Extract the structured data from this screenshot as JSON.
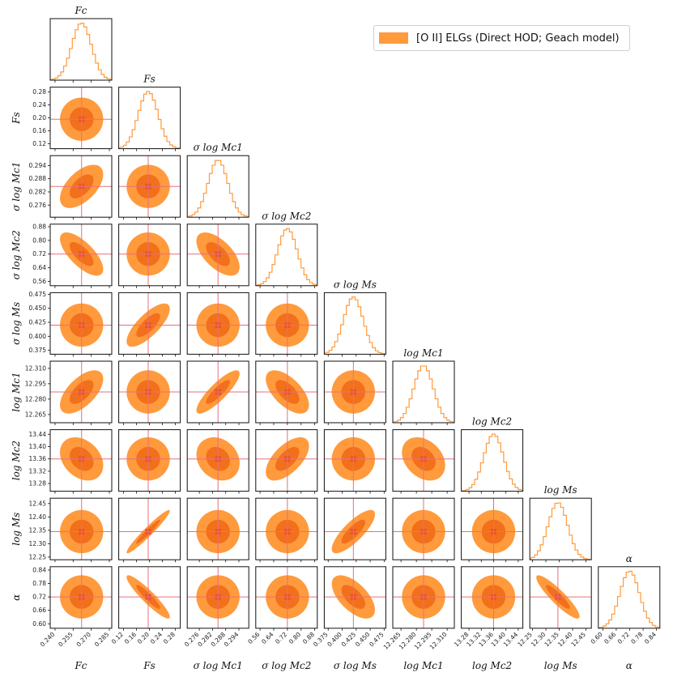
{
  "legend": {
    "label": "[O II] ELGs (Direct HOD; Geach model)"
  },
  "colors": {
    "hist": "#ff9a3d",
    "outer": "#ff9a3d",
    "inner": "#f26f1c",
    "truth": "#e8707a"
  },
  "chart_data": {
    "type": "corner",
    "title": "",
    "params": [
      {
        "id": "Fc",
        "title": "Fc",
        "label": "Fc",
        "truth": 0.262,
        "lim": [
          0.236,
          0.287
        ],
        "ticks": [
          0.24,
          0.255,
          0.27,
          0.285
        ],
        "tick_labels": [
          "0.240",
          "0.255",
          "0.270",
          "0.285"
        ]
      },
      {
        "id": "Fs",
        "title": "Fs",
        "label": "Fs",
        "truth": 0.196,
        "lim": [
          0.105,
          0.295
        ],
        "ticks": [
          0.12,
          0.16,
          0.2,
          0.24,
          0.28
        ],
        "tick_labels": [
          "0.12",
          "0.16",
          "0.20",
          "0.24",
          "0.28"
        ]
      },
      {
        "id": "sMc1",
        "title": "σ log Mc1",
        "label": "σ log Mc1",
        "truth": 0.2845,
        "lim": [
          0.2705,
          0.2985
        ],
        "ticks": [
          0.276,
          0.282,
          0.288,
          0.294
        ],
        "tick_labels": [
          "0.276",
          "0.282",
          "0.288",
          "0.294"
        ]
      },
      {
        "id": "sMc2",
        "title": "σ log Mc2",
        "label": "σ log Mc2",
        "truth": 0.72,
        "lim": [
          0.535,
          0.895
        ],
        "ticks": [
          0.56,
          0.64,
          0.72,
          0.8,
          0.88
        ],
        "tick_labels": [
          "0.56",
          "0.64",
          "0.72",
          "0.80",
          "0.88"
        ]
      },
      {
        "id": "sMs",
        "title": "σ log Ms",
        "label": "σ log Ms",
        "truth": 0.42,
        "lim": [
          0.368,
          0.478
        ],
        "ticks": [
          0.375,
          0.4,
          0.425,
          0.45,
          0.475
        ],
        "tick_labels": [
          "0.375",
          "0.400",
          "0.425",
          "0.450",
          "0.475"
        ]
      },
      {
        "id": "Mc1",
        "title": "log Mc1",
        "label": "log Mc1",
        "truth": 12.287,
        "lim": [
          12.257,
          12.317
        ],
        "ticks": [
          12.265,
          12.28,
          12.295,
          12.31
        ],
        "tick_labels": [
          "12.265",
          "12.280",
          "12.295",
          "12.310"
        ]
      },
      {
        "id": "Mc2",
        "title": "log Mc2",
        "label": "log Mc2",
        "truth": 13.36,
        "lim": [
          13.255,
          13.455
        ],
        "ticks": [
          13.28,
          13.32,
          13.36,
          13.4,
          13.44
        ],
        "tick_labels": [
          "13.28",
          "13.32",
          "13.36",
          "13.40",
          "13.44"
        ]
      },
      {
        "id": "Ms",
        "title": "log Ms",
        "label": "log Ms",
        "truth": 12.345,
        "lim": [
          12.24,
          12.47
        ],
        "ticks": [
          12.25,
          12.3,
          12.35,
          12.4,
          12.45
        ],
        "tick_labels": [
          "12.25",
          "12.30",
          "12.35",
          "12.40",
          "12.45"
        ]
      },
      {
        "id": "alpha",
        "title": "α",
        "label": "α",
        "truth": 0.72,
        "lim": [
          0.58,
          0.855
        ],
        "ticks": [
          0.6,
          0.66,
          0.72,
          0.78,
          0.84
        ],
        "tick_labels": [
          "0.60",
          "0.66",
          "0.72",
          "0.78",
          "0.84"
        ]
      }
    ],
    "correlations": [
      {
        "row": "sMc1",
        "col": "Fc",
        "rho": 0.55
      },
      {
        "row": "sMc2",
        "col": "Fc",
        "rho": -0.7
      },
      {
        "row": "sMc2",
        "col": "sMc1",
        "rho": -0.6
      },
      {
        "row": "sMs",
        "col": "Fs",
        "rho": 0.75
      },
      {
        "row": "Mc1",
        "col": "Fc",
        "rho": 0.6
      },
      {
        "row": "Mc1",
        "col": "sMc1",
        "rho": 0.85
      },
      {
        "row": "Mc1",
        "col": "sMc2",
        "rho": -0.6
      },
      {
        "row": "Mc2",
        "col": "Fc",
        "rho": -0.3
      },
      {
        "row": "Mc2",
        "col": "sMc1",
        "rho": -0.2
      },
      {
        "row": "Mc2",
        "col": "sMc2",
        "rho": 0.6
      },
      {
        "row": "Mc2",
        "col": "Mc1",
        "rho": -0.3
      },
      {
        "row": "Ms",
        "col": "Fs",
        "rho": 0.96
      },
      {
        "row": "Ms",
        "col": "sMs",
        "rho": 0.8
      },
      {
        "row": "alpha",
        "col": "Fs",
        "rho": -0.92
      },
      {
        "row": "alpha",
        "col": "sMs",
        "rho": -0.6
      },
      {
        "row": "alpha",
        "col": "Ms",
        "rho": -0.9
      }
    ],
    "contour_levels": [
      "68%",
      "95%"
    ],
    "histogram": {
      "bins": 20,
      "shape": "gaussian"
    }
  }
}
